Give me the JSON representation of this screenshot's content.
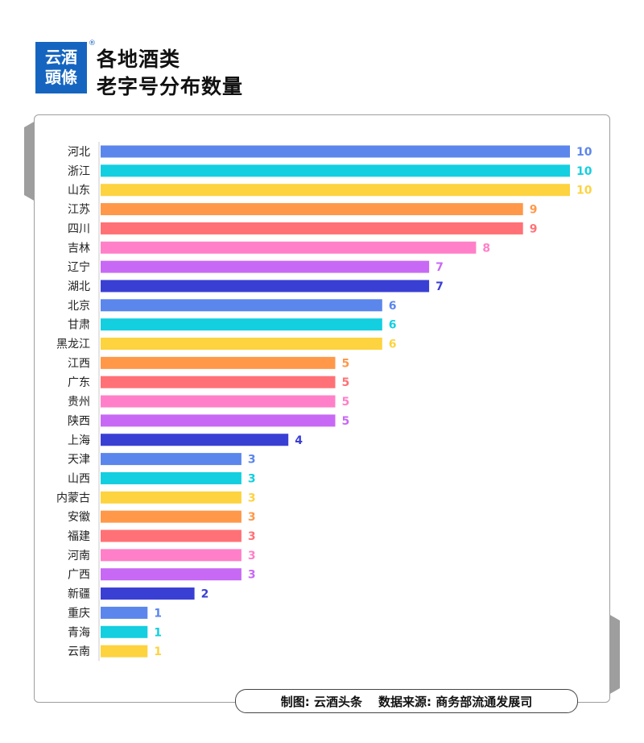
{
  "header": {
    "logo_text_line1": "云酒",
    "logo_text_line2": "頭條",
    "registered_mark": "®",
    "title_line1": "各地酒类",
    "title_line2": "老字号分布数量"
  },
  "footer": {
    "credit": "制图: 云酒头条",
    "source": "数据来源: 商务部流通发展司"
  },
  "chart_data": {
    "type": "bar",
    "orientation": "horizontal",
    "categories": [
      "河北",
      "浙江",
      "山东",
      "江苏",
      "四川",
      "吉林",
      "辽宁",
      "湖北",
      "北京",
      "甘肃",
      "黑龙江",
      "江西",
      "广东",
      "贵州",
      "陕西",
      "上海",
      "天津",
      "山西",
      "内蒙古",
      "安徽",
      "福建",
      "河南",
      "广西",
      "新疆",
      "重庆",
      "青海",
      "云南"
    ],
    "values": [
      10,
      10,
      10,
      9,
      9,
      8,
      7,
      7,
      6,
      6,
      6,
      5,
      5,
      5,
      5,
      4,
      3,
      3,
      3,
      3,
      3,
      3,
      3,
      2,
      1,
      1,
      1
    ],
    "xlim": [
      0,
      10
    ],
    "grid": false,
    "legend": "none",
    "data_labels": true,
    "color_cycle": [
      "#5b86ec",
      "#13cfe0",
      "#fdd33f",
      "#ff9849",
      "#ff7176",
      "#ff80c8",
      "#c869f5",
      "#3a3fd4"
    ]
  }
}
